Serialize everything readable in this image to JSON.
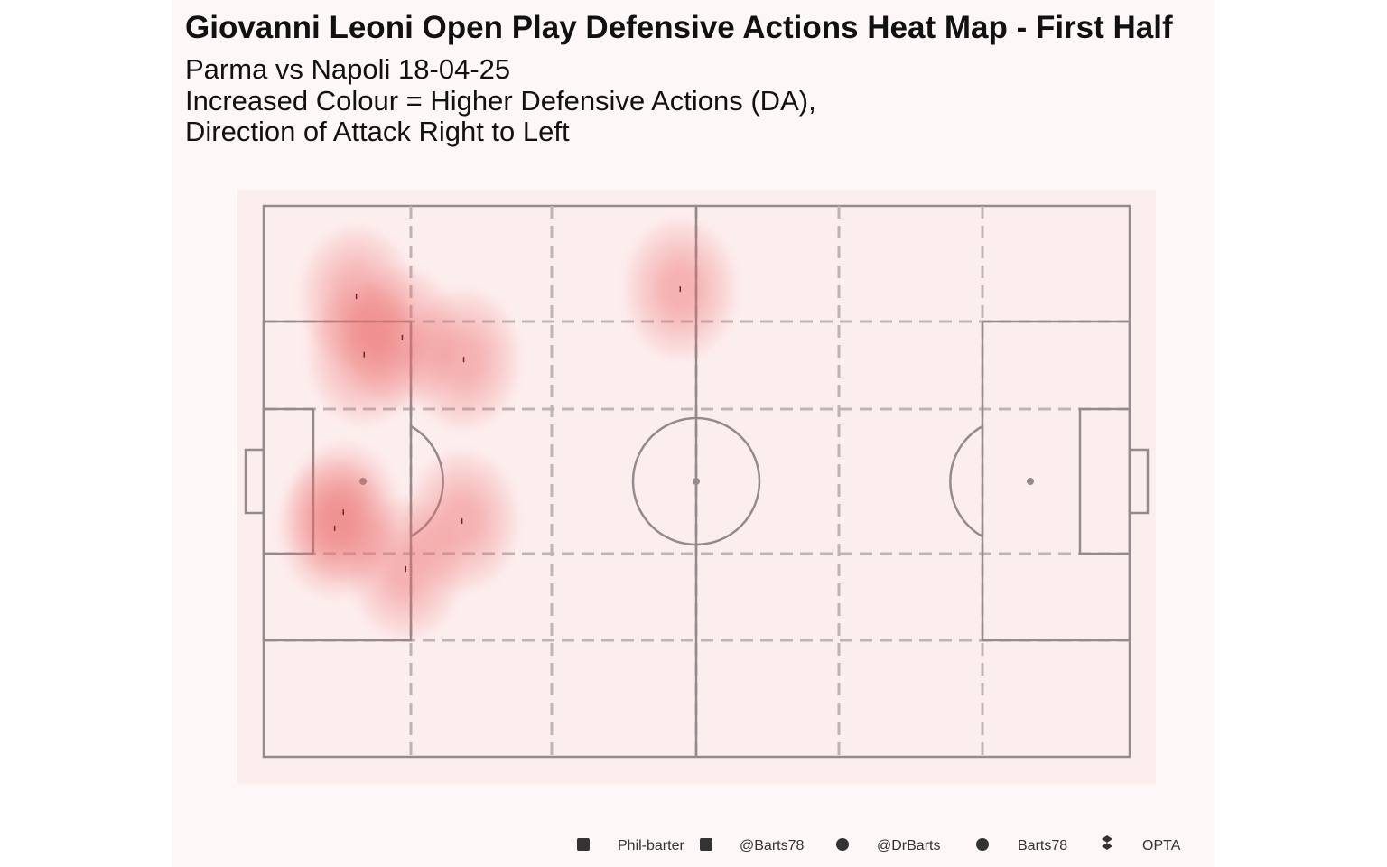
{
  "chart_data": {
    "type": "heatmap",
    "title": "Giovanni Leoni  Open Play Defensive Actions Heat Map - First Half",
    "subtitle": [
      "Parma vs Napoli 18-04-25",
      "Increased Colour = Higher Defensive Actions (DA),",
      "Direction of Attack Right to Left"
    ],
    "x": [
      10.7,
      16.0,
      11.6,
      23.1,
      48.1,
      9.2,
      8.2,
      22.9,
      16.4
    ],
    "y": [
      83.6,
      76.1,
      73.0,
      72.1,
      84.9,
      44.4,
      41.5,
      42.8,
      34.1
    ],
    "xlim": [
      0,
      100
    ],
    "ylim": [
      0,
      100
    ],
    "color": "#e86a6a"
  },
  "footer": [
    "Phil-barter",
    "@Barts78",
    "@DrBarts",
    "Barts78",
    "OPTA"
  ]
}
